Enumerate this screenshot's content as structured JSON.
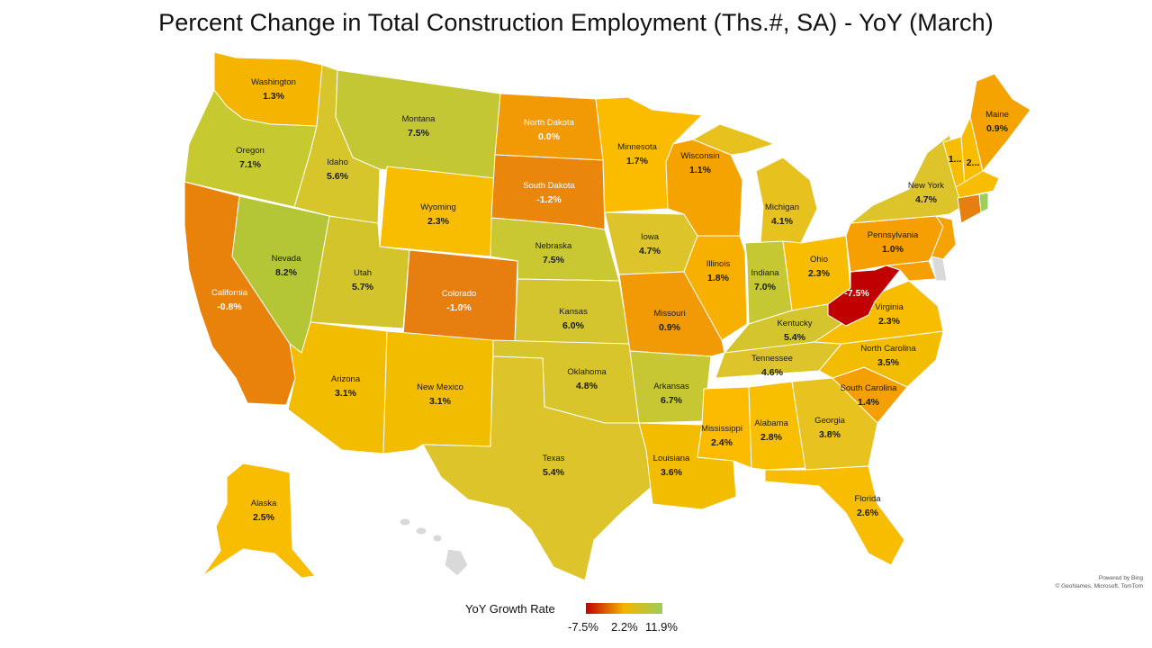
{
  "title": "Percent Change in Total Construction Employment (Ths.#, SA) - YoY (March)",
  "legend": {
    "title": "YoY Growth Rate",
    "min_label": "-7.5%",
    "mid_label": "2.2%",
    "max_label": "11.9%",
    "colors": {
      "min": "#c00000",
      "mid": "#f4b400",
      "max": "#9bcf5a"
    }
  },
  "credit": {
    "powered": "Powered by Bing",
    "sources": "© GeoNames, Microsoft, TomTom"
  },
  "chart_data": {
    "type": "choropleth",
    "title": "Percent Change in Total Construction Employment (Ths.#, SA) - YoY (March)",
    "color_scale": {
      "min": -7.5,
      "mid": 2.2,
      "max": 11.9
    },
    "states": [
      {
        "name": "Washington",
        "value": "1.3%"
      },
      {
        "name": "Oregon",
        "value": "7.1%"
      },
      {
        "name": "California",
        "value": "-0.8%"
      },
      {
        "name": "Nevada",
        "value": "8.2%"
      },
      {
        "name": "Idaho",
        "value": "5.6%"
      },
      {
        "name": "Montana",
        "value": "7.5%"
      },
      {
        "name": "Wyoming",
        "value": "2.3%"
      },
      {
        "name": "Utah",
        "value": "5.7%"
      },
      {
        "name": "Colorado",
        "value": "-1.0%"
      },
      {
        "name": "Arizona",
        "value": "3.1%"
      },
      {
        "name": "New Mexico",
        "value": "3.1%"
      },
      {
        "name": "North Dakota",
        "value": "0.0%"
      },
      {
        "name": "South Dakota",
        "value": "-1.2%"
      },
      {
        "name": "Nebraska",
        "value": "7.5%"
      },
      {
        "name": "Kansas",
        "value": "6.0%"
      },
      {
        "name": "Oklahoma",
        "value": "4.8%"
      },
      {
        "name": "Texas",
        "value": "5.4%"
      },
      {
        "name": "Minnesota",
        "value": "1.7%"
      },
      {
        "name": "Iowa",
        "value": "4.7%"
      },
      {
        "name": "Missouri",
        "value": "0.9%"
      },
      {
        "name": "Arkansas",
        "value": "6.7%"
      },
      {
        "name": "Louisiana",
        "value": "3.6%"
      },
      {
        "name": "Wisconsin",
        "value": "1.1%"
      },
      {
        "name": "Illinois",
        "value": "1.8%"
      },
      {
        "name": "Michigan",
        "value": "4.1%"
      },
      {
        "name": "Indiana",
        "value": "7.0%"
      },
      {
        "name": "Ohio",
        "value": "2.3%"
      },
      {
        "name": "Kentucky",
        "value": "5.4%"
      },
      {
        "name": "Tennessee",
        "value": "4.6%"
      },
      {
        "name": "Mississippi",
        "value": "2.4%"
      },
      {
        "name": "Alabama",
        "value": "2.8%"
      },
      {
        "name": "Georgia",
        "value": "3.8%"
      },
      {
        "name": "Florida",
        "value": "2.6%"
      },
      {
        "name": "South Carolina",
        "value": "1.4%"
      },
      {
        "name": "North Carolina",
        "value": "3.5%"
      },
      {
        "name": "Virginia",
        "value": "2.3%"
      },
      {
        "name": "West Virginia",
        "value": "-7.5%"
      },
      {
        "name": "Pennsylvania",
        "value": "1.0%"
      },
      {
        "name": "New York",
        "value": "4.7%"
      },
      {
        "name": "Maine",
        "value": "0.9%"
      },
      {
        "name": "Vermont",
        "value": "1..."
      },
      {
        "name": "New Hampshire",
        "value": "2..."
      },
      {
        "name": "Alaska",
        "value": "2.5%"
      }
    ]
  }
}
